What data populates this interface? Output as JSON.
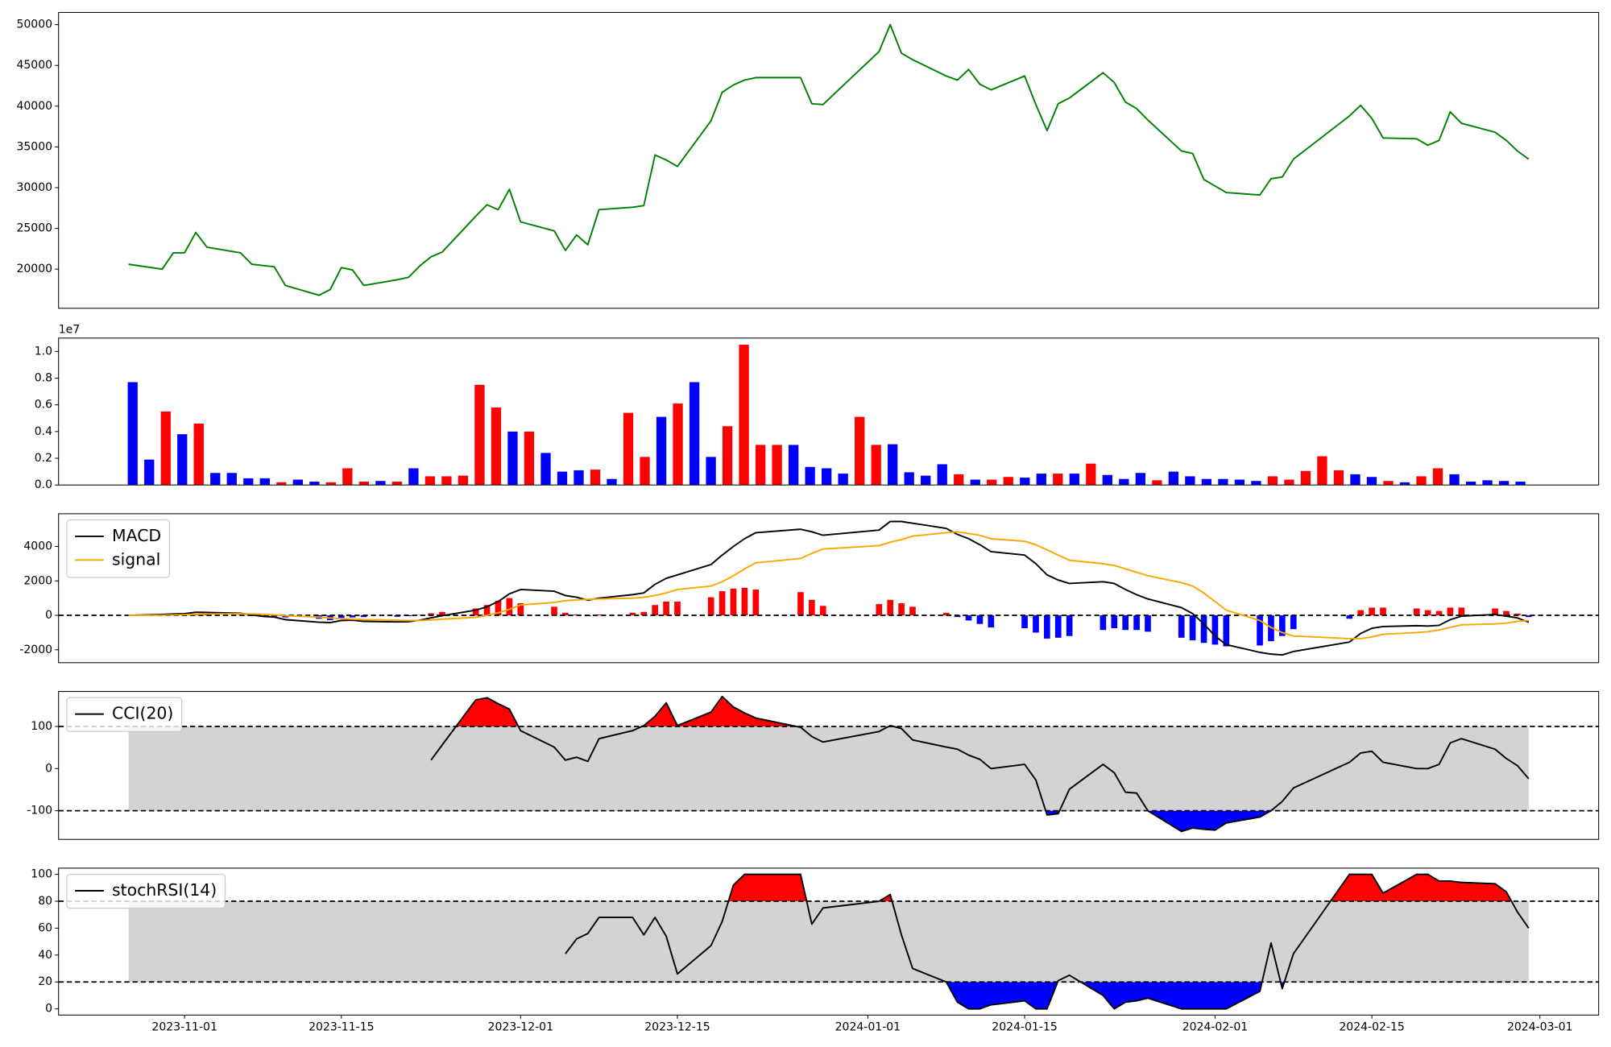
{
  "chart_data": [
    {
      "type": "line",
      "x": [
        "2023-10-27",
        "2023-10-30",
        "2023-10-31",
        "2023-11-01",
        "2023-11-02",
        "2023-11-03",
        "2023-11-06",
        "2023-11-07",
        "2023-11-08",
        "2023-11-09",
        "2023-11-10",
        "2023-11-13",
        "2023-11-14",
        "2023-11-15",
        "2023-11-16",
        "2023-11-17",
        "2023-11-20",
        "2023-11-21",
        "2023-11-22",
        "2023-11-23",
        "2023-11-24",
        "2023-11-27",
        "2023-11-28",
        "2023-11-29",
        "2023-11-30",
        "2023-12-01",
        "2023-12-04",
        "2023-12-05",
        "2023-12-06",
        "2023-12-07",
        "2023-12-08",
        "2023-12-11",
        "2023-12-12",
        "2023-12-13",
        "2023-12-14",
        "2023-12-15",
        "2023-12-18",
        "2023-12-19",
        "2023-12-20",
        "2023-12-21",
        "2023-12-22",
        "2023-12-26",
        "2023-12-27",
        "2023-12-28",
        "2024-01-02",
        "2024-01-03",
        "2024-01-04",
        "2024-01-05",
        "2024-01-08",
        "2024-01-09",
        "2024-01-10",
        "2024-01-11",
        "2024-01-12",
        "2024-01-15",
        "2024-01-16",
        "2024-01-17",
        "2024-01-18",
        "2024-01-19",
        "2024-01-22",
        "2024-01-23",
        "2024-01-24",
        "2024-01-25",
        "2024-01-26",
        "2024-01-29",
        "2024-01-30",
        "2024-01-31",
        "2024-02-01",
        "2024-02-02",
        "2024-02-05",
        "2024-02-06",
        "2024-02-07",
        "2024-02-08",
        "2024-02-13",
        "2024-02-14",
        "2024-02-15",
        "2024-02-16",
        "2024-02-19",
        "2024-02-20",
        "2024-02-21",
        "2024-02-22",
        "2024-02-23",
        "2024-02-26",
        "2024-02-27",
        "2024-02-28",
        "2024-02-29"
      ],
      "xlim": [
        "2023-10-20T18:00:00Z",
        "2024-03-06T06:00:00Z"
      ],
      "series": [
        {
          "color": "green",
          "values": [
            20600,
            20000,
            22000,
            22000,
            24500,
            22700,
            22000,
            20600,
            20450,
            20300,
            18000,
            16800,
            17500,
            20200,
            19900,
            18000,
            18700,
            19000,
            20400,
            21500,
            22100,
            26500,
            27900,
            27300,
            29800,
            25800,
            24700,
            22300,
            24200,
            23000,
            27300,
            27600,
            27800,
            34000,
            33400,
            32600,
            38200,
            41700,
            42600,
            43200,
            43500,
            43500,
            40300,
            40200,
            46700,
            50000,
            46500,
            45700,
            43700,
            43200,
            44500,
            42700,
            42000,
            43700,
            40200,
            37000,
            40300,
            41000,
            44100,
            42900,
            40500,
            39700,
            38300,
            34500,
            34200,
            31000,
            30200,
            29400,
            29100,
            31100,
            31300,
            33500,
            38800,
            40100,
            38500,
            36100,
            36000,
            35200,
            35800,
            39300,
            37900,
            36800,
            35800,
            34500,
            33500
          ]
        }
      ],
      "ylim": [
        15200,
        51500
      ],
      "yticks": [
        20000,
        25000,
        30000,
        35000,
        40000,
        45000,
        50000
      ]
    },
    {
      "type": "bar",
      "values": [
        7700000,
        1900000,
        5500000,
        3800000,
        4600000,
        900000,
        900000,
        500000,
        500000,
        200000,
        400000,
        250000,
        200000,
        1250000,
        250000,
        300000,
        250000,
        1250000,
        650000,
        650000,
        700000,
        7500000,
        5800000,
        4000000,
        4000000,
        2400000,
        1000000,
        1100000,
        1150000,
        450000,
        5400000,
        2100000,
        5100000,
        6100000,
        7700000,
        2100000,
        4400000,
        10500000,
        3000000,
        3000000,
        3000000,
        1350000,
        1250000,
        850000,
        5100000,
        3000000,
        3050000,
        950000,
        700000,
        1550000,
        800000,
        400000,
        400000,
        600000,
        550000,
        850000,
        850000,
        850000,
        1600000,
        750000,
        450000,
        900000,
        350000,
        1000000,
        650000,
        450000,
        450000,
        400000,
        300000,
        650000,
        400000,
        1050000,
        2150000,
        1100000,
        800000,
        600000,
        300000,
        200000,
        650000,
        1250000,
        800000,
        250000,
        350000,
        300000,
        250000
      ],
      "colors": [
        "blue",
        "blue",
        "red",
        "blue",
        "red",
        "blue",
        "blue",
        "blue",
        "blue",
        "red",
        "blue",
        "blue",
        "red",
        "red",
        "red",
        "blue",
        "red",
        "blue",
        "red",
        "red",
        "red",
        "red",
        "red",
        "blue",
        "red",
        "blue",
        "blue",
        "blue",
        "red",
        "blue",
        "red",
        "red",
        "blue",
        "red",
        "blue",
        "blue",
        "red",
        "red",
        "red",
        "red",
        "blue",
        "blue",
        "blue",
        "blue",
        "red",
        "red",
        "blue",
        "blue",
        "blue",
        "blue",
        "red",
        "blue",
        "red",
        "red",
        "blue",
        "blue",
        "red",
        "blue",
        "red",
        "blue",
        "blue",
        "blue",
        "red",
        "blue",
        "blue",
        "blue",
        "blue",
        "blue",
        "blue",
        "red",
        "red",
        "red",
        "red",
        "red",
        "blue",
        "blue",
        "red",
        "blue",
        "red",
        "red",
        "blue",
        "blue",
        "blue",
        "blue",
        "blue"
      ],
      "ylim": [
        0,
        11000000
      ],
      "yticks": [
        {
          "value": 0,
          "label": "0.0"
        },
        {
          "value": 2000000,
          "label": "0.2"
        },
        {
          "value": 4000000,
          "label": "0.4"
        },
        {
          "value": 6000000,
          "label": "0.6"
        },
        {
          "value": 8000000,
          "label": "0.8"
        },
        {
          "value": 10000000,
          "label": "1.0"
        }
      ],
      "offset_label": "1e7"
    },
    {
      "type": "line",
      "series": [
        {
          "name": "MACD",
          "color": "black",
          "values": [
            0,
            50,
            80,
            100,
            180,
            170,
            120,
            20,
            -60,
            -100,
            -250,
            -400,
            -420,
            -300,
            -280,
            -350,
            -380,
            -370,
            -280,
            -150,
            -20,
            300,
            500,
            800,
            1250,
            1500,
            1400,
            1150,
            1050,
            880,
            1000,
            1200,
            1300,
            1800,
            2150,
            2350,
            2950,
            3500,
            4000,
            4450,
            4800,
            5000,
            4850,
            4650,
            4950,
            5450,
            5450,
            5350,
            5050,
            4700,
            4450,
            4100,
            3700,
            3500,
            3000,
            2350,
            2050,
            1850,
            1950,
            1850,
            1500,
            1200,
            950,
            450,
            100,
            -500,
            -1200,
            -1700,
            -2150,
            -2250,
            -2300,
            -2100,
            -1550,
            -1050,
            -750,
            -650,
            -600,
            -620,
            -580,
            -250,
            -50,
            50,
            -50,
            -150,
            -400
          ]
        },
        {
          "name": "signal",
          "color": "orange",
          "values": [
            0,
            10,
            20,
            40,
            60,
            80,
            90,
            80,
            60,
            30,
            -20,
            -100,
            -160,
            -200,
            -220,
            -250,
            -280,
            -300,
            -300,
            -270,
            -220,
            -120,
            0,
            150,
            350,
            600,
            750,
            850,
            900,
            930,
            950,
            1000,
            1050,
            1150,
            1300,
            1500,
            1700,
            1950,
            2300,
            2700,
            3050,
            3300,
            3600,
            3850,
            4050,
            4250,
            4400,
            4600,
            4800,
            4850,
            4750,
            4650,
            4450,
            4300,
            4100,
            3800,
            3500,
            3200,
            3000,
            2900,
            2700,
            2500,
            2300,
            1900,
            1700,
            1300,
            800,
            300,
            -300,
            -700,
            -1000,
            -1200,
            -1350,
            -1350,
            -1250,
            -1100,
            -1000,
            -950,
            -850,
            -700,
            -550,
            -500,
            -450,
            -350,
            -300
          ]
        }
      ],
      "histogram": {
        "positive_color": "red",
        "negative_color": "blue",
        "values": [
          0,
          30,
          40,
          40,
          70,
          50,
          20,
          -30,
          -60,
          -80,
          -120,
          -200,
          -280,
          -150,
          -120,
          -100,
          -80,
          -50,
          20,
          120,
          200,
          400,
          600,
          850,
          1000,
          700,
          500,
          150,
          50,
          -50,
          50,
          150,
          200,
          600,
          800,
          800,
          1050,
          1400,
          1550,
          1600,
          1500,
          1350,
          900,
          550,
          650,
          900,
          700,
          500,
          150,
          -100,
          -300,
          -500,
          -700,
          -750,
          -1000,
          -1350,
          -1300,
          -1200,
          -850,
          -750,
          -850,
          -850,
          -950,
          -1300,
          -1450,
          -1600,
          -1700,
          -1800,
          -1750,
          -1500,
          -1200,
          -800,
          -200,
          300,
          450,
          450,
          400,
          300,
          250,
          450,
          450,
          400,
          250,
          100,
          -100
        ]
      },
      "hlines": [
        0
      ],
      "ylim": [
        -2750,
        5900
      ],
      "yticks": [
        -2000,
        0,
        2000,
        4000
      ],
      "legend": "upper left"
    },
    {
      "type": "line",
      "series": [
        {
          "name": "CCI(20)",
          "color": "black",
          "values": [
            null,
            null,
            null,
            null,
            null,
            null,
            null,
            null,
            null,
            null,
            null,
            null,
            null,
            null,
            null,
            null,
            null,
            null,
            null,
            20,
            56,
            163,
            168,
            154,
            141,
            90,
            51,
            20,
            27,
            17,
            71,
            90,
            102,
            124,
            156,
            102,
            134,
            171,
            146,
            132,
            120,
            98,
            76,
            63,
            88,
            102,
            95,
            68,
            51,
            46,
            32,
            22,
            0,
            10,
            -27,
            -110,
            -107,
            -49,
            10,
            -10,
            -56,
            -58,
            -100,
            -149,
            -141,
            -144,
            -146,
            -129,
            -115,
            -100,
            -78,
            -46,
            15,
            37,
            41,
            15,
            0,
            0,
            10,
            61,
            71,
            46,
            24,
            7,
            -24
          ]
        }
      ],
      "hlines": [
        -100,
        100
      ],
      "band_color": "lightgray",
      "above_color": "red",
      "below_color": "blue",
      "ylim": [
        -168,
        183
      ],
      "yticks": [
        -100,
        0,
        100
      ],
      "legend": "upper left"
    },
    {
      "type": "line",
      "series": [
        {
          "name": "stochRSI(14)",
          "color": "black",
          "values": [
            null,
            null,
            null,
            null,
            null,
            null,
            null,
            null,
            null,
            null,
            null,
            null,
            null,
            null,
            null,
            null,
            null,
            null,
            null,
            null,
            null,
            null,
            null,
            null,
            null,
            null,
            null,
            41,
            52,
            56,
            68,
            68,
            55,
            68,
            54,
            26,
            47,
            65,
            92,
            100,
            100,
            100,
            63,
            75,
            80,
            85,
            55,
            30,
            20,
            5,
            0,
            0,
            3,
            6,
            0,
            0,
            21,
            25,
            10,
            0,
            5,
            6,
            8,
            0,
            0,
            0,
            0,
            0,
            13,
            49,
            15,
            41,
            100,
            100,
            100,
            86,
            100,
            100,
            95,
            95,
            94,
            93,
            87,
            72,
            60
          ]
        }
      ],
      "hlines": [
        20,
        80
      ],
      "band_color": "lightgray",
      "above_color": "red",
      "below_color": "blue",
      "ylim": [
        -4.6,
        104.6
      ],
      "yticks": [
        0,
        20,
        40,
        60,
        80,
        100
      ],
      "legend": "upper left",
      "xticks": [
        "2023-11-01",
        "2023-11-15",
        "2023-12-01",
        "2023-12-15",
        "2024-01-01",
        "2024-01-15",
        "2024-02-01",
        "2024-02-15",
        "2024-03-01"
      ]
    }
  ]
}
